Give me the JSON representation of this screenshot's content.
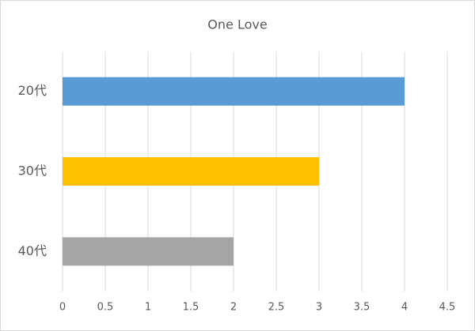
{
  "chart_data": {
    "type": "hbar",
    "title": "One Love",
    "categories": [
      "20代",
      "30代",
      "40代"
    ],
    "values": [
      4,
      3,
      2
    ],
    "colors": [
      "#5b9bd5",
      "#ffc000",
      "#a5a5a5"
    ],
    "xlim": [
      0,
      4.5
    ],
    "xticks": [
      0,
      0.5,
      1,
      1.5,
      2,
      2.5,
      3,
      3.5,
      4,
      4.5
    ],
    "grid": true
  }
}
